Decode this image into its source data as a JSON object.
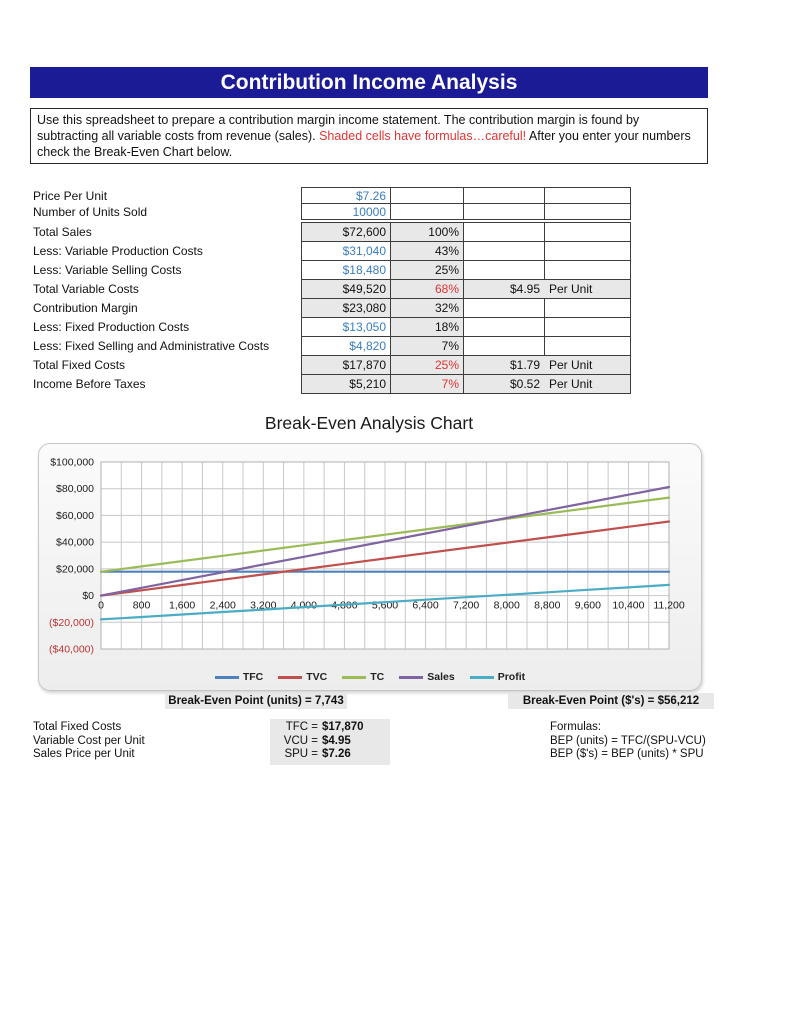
{
  "header": {
    "title": "Contribution Income Analysis"
  },
  "description": {
    "part1": "Use this spreadsheet to prepare a contribution margin income statement. The contribution margin is found by subtracting all variable costs from revenue (sales). ",
    "warning": "Shaded cells have formulas…careful!",
    "part2": " After you enter your numbers check the Break-Even Chart below."
  },
  "statement": {
    "rows": [
      {
        "label": "Price Per Unit",
        "value": "$7.26",
        "value_input": true,
        "pct": "",
        "pct_red": false,
        "per_value": "",
        "per_label": "",
        "small": true,
        "gap_before": false
      },
      {
        "label": "Number of Units Sold",
        "value": "10000",
        "value_input": true,
        "pct": "",
        "pct_red": false,
        "per_value": "",
        "per_label": "",
        "small": true,
        "gap_before": false
      },
      {
        "label": "Total Sales",
        "value": "$72,600",
        "value_input": false,
        "pct": "100%",
        "pct_red": false,
        "per_value": "",
        "per_label": "",
        "small": false,
        "gap_before": true
      },
      {
        "label": "Less: Variable Production Costs",
        "value": "$31,040",
        "value_input": true,
        "pct": "43%",
        "pct_red": false,
        "per_value": "",
        "per_label": "",
        "small": false,
        "gap_before": false
      },
      {
        "label": "Less: Variable Selling Costs",
        "value": "$18,480",
        "value_input": true,
        "pct": "25%",
        "pct_red": false,
        "per_value": "",
        "per_label": "",
        "small": false,
        "gap_before": false
      },
      {
        "label": "Total Variable Costs",
        "value": "$49,520",
        "value_input": false,
        "pct": "68%",
        "pct_red": true,
        "per_value": "$4.95",
        "per_label": "Per Unit",
        "small": false,
        "gap_before": false
      },
      {
        "label": "Contribution Margin",
        "value": "$23,080",
        "value_input": false,
        "pct": "32%",
        "pct_red": false,
        "per_value": "",
        "per_label": "",
        "small": false,
        "gap_before": false
      },
      {
        "label": "Less: Fixed Production Costs",
        "value": "$13,050",
        "value_input": true,
        "pct": "18%",
        "pct_red": false,
        "per_value": "",
        "per_label": "",
        "small": false,
        "gap_before": false
      },
      {
        "label": "Less: Fixed Selling and Administrative Costs",
        "value": "$4,820",
        "value_input": true,
        "pct": "7%",
        "pct_red": false,
        "per_value": "",
        "per_label": "",
        "small": false,
        "gap_before": false
      },
      {
        "label": "Total Fixed Costs",
        "value": "$17,870",
        "value_input": false,
        "pct": "25%",
        "pct_red": true,
        "per_value": "$1.79",
        "per_label": "Per Unit",
        "small": false,
        "gap_before": false
      },
      {
        "label": "Income Before Taxes",
        "value": "$5,210",
        "value_input": false,
        "pct": "7%",
        "pct_red": true,
        "per_value": "$0.52",
        "per_label": "Per Unit",
        "small": false,
        "gap_before": false
      }
    ]
  },
  "chart_data": {
    "type": "line",
    "title": "Break-Even Analysis Chart",
    "xlim": [
      0,
      11200
    ],
    "ylim": [
      -40000,
      100000
    ],
    "minor_x_step": 400,
    "grid": true,
    "legend_position": "bottom",
    "x": [
      0,
      800,
      1600,
      2400,
      3200,
      4000,
      4800,
      5600,
      6400,
      7200,
      8000,
      8800,
      9600,
      10400,
      11200
    ],
    "x_tick_labels": [
      "0",
      "800",
      "1,600",
      "2,400",
      "3,200",
      "4,000",
      "4,800",
      "5,600",
      "6,400",
      "7,200",
      "8,000",
      "8,800",
      "9,600",
      "10,400",
      "11,200"
    ],
    "y_ticks": [
      {
        "value": 100000,
        "label": "$100,000",
        "negative": false
      },
      {
        "value": 80000,
        "label": "$80,000",
        "negative": false
      },
      {
        "value": 60000,
        "label": "$60,000",
        "negative": false
      },
      {
        "value": 40000,
        "label": "$40,000",
        "negative": false
      },
      {
        "value": 20000,
        "label": "$20,000",
        "negative": false
      },
      {
        "value": 0,
        "label": "$0",
        "negative": false
      },
      {
        "value": -20000,
        "label": "($20,000)",
        "negative": true
      },
      {
        "value": -40000,
        "label": "($40,000)",
        "negative": true
      }
    ],
    "series": [
      {
        "name": "TFC",
        "color": "#4F81BD",
        "values": [
          17870,
          17870,
          17870,
          17870,
          17870,
          17870,
          17870,
          17870,
          17870,
          17870,
          17870,
          17870,
          17870,
          17870,
          17870
        ]
      },
      {
        "name": "TVC",
        "color": "#C0504D",
        "values": [
          0,
          3962,
          7923,
          11885,
          15846,
          19808,
          23770,
          27731,
          31693,
          35654,
          39616,
          43578,
          47539,
          51501,
          55462
        ]
      },
      {
        "name": "TC",
        "color": "#9BBB59",
        "values": [
          17870,
          21832,
          25793,
          29755,
          33716,
          37678,
          41640,
          45601,
          49563,
          53524,
          57486,
          61448,
          65409,
          69371,
          73332
        ]
      },
      {
        "name": "Sales",
        "color": "#8064A2",
        "values": [
          0,
          5808,
          11616,
          17424,
          23232,
          29040,
          34848,
          40656,
          46464,
          52272,
          58080,
          63888,
          69696,
          75504,
          81312
        ]
      },
      {
        "name": "Profit",
        "color": "#4BACC6",
        "values": [
          -17870,
          -16024,
          -14177,
          -12331,
          -10484,
          -8638,
          -6792,
          -4945,
          -3099,
          -1252,
          594,
          2440,
          4287,
          6133,
          7980
        ]
      }
    ]
  },
  "bep": {
    "units": "Break-Even Point (units) = 7,743",
    "dollars": "Break-Even Point ($'s) = $56,212"
  },
  "footer": {
    "rows": [
      {
        "label": "Total Fixed Costs",
        "eq_label": "TFC =",
        "eq_value": "$17,870"
      },
      {
        "label": "Variable Cost per Unit",
        "eq_label": "VCU =",
        "eq_value": "$4.95"
      },
      {
        "label": "Sales Price per Unit",
        "eq_label": "SPU =",
        "eq_value": "$7.26"
      }
    ],
    "formulas_title": "Formulas:",
    "formulas": [
      "BEP (units) = TFC/(SPU-VCU)",
      "BEP ($'s) = BEP (units) * SPU"
    ]
  },
  "colors": {
    "title_bar_bg": "#1b1b96",
    "title_text": "#ffffff",
    "input_blue": "#3a7dbe",
    "alert_red": "#e03434",
    "shaded_cell": "#e8e8e8",
    "negative_tick_red": "#c03434",
    "gridline": "#c8c8c8",
    "tick_text": "#1a1a1a",
    "plot_border": "#b0b0b0"
  }
}
